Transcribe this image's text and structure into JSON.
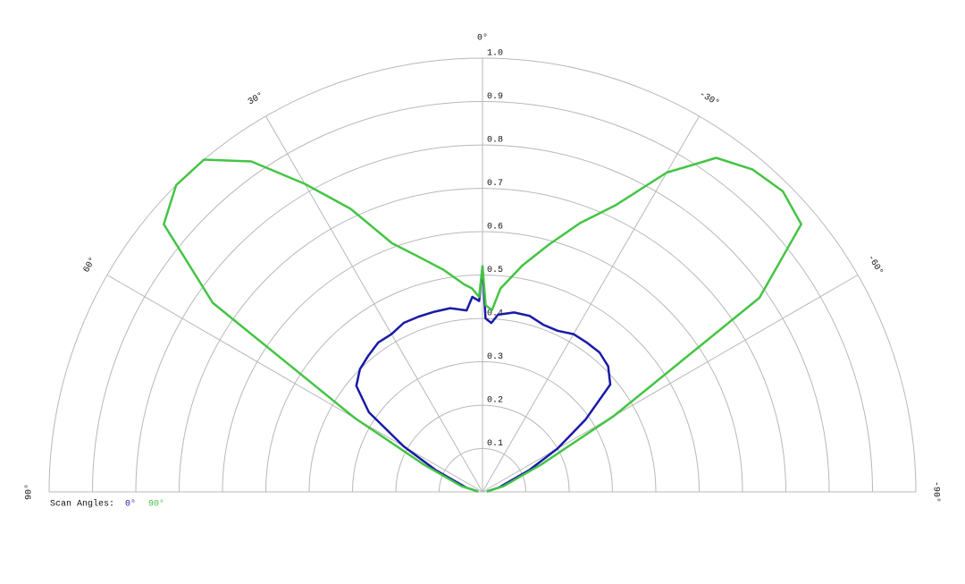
{
  "chart_data": {
    "type": "polar",
    "x": [
      -85,
      -75,
      -65,
      -60,
      -55,
      -50,
      -45,
      -40,
      -35,
      -30,
      -25,
      -20,
      -15,
      -10,
      -5,
      -3,
      -1,
      0,
      1,
      3,
      5,
      10,
      15,
      20,
      25,
      30,
      35,
      40,
      45,
      50,
      55,
      60,
      65,
      75,
      85
    ],
    "series": [
      {
        "name": "0°",
        "color": "#1a1aa8",
        "values": [
          0.01,
          0.04,
          0.12,
          0.2,
          0.29,
          0.385,
          0.41,
          0.42,
          0.42,
          0.42,
          0.41,
          0.41,
          0.42,
          0.42,
          0.41,
          0.39,
          0.4,
          0.52,
          0.44,
          0.45,
          0.42,
          0.43,
          0.43,
          0.43,
          0.43,
          0.42,
          0.42,
          0.41,
          0.4,
          0.38,
          0.32,
          0.21,
          0.12,
          0.04,
          0.01
        ]
      },
      {
        "name": "90°",
        "color": "#44c444",
        "values": [
          0.01,
          0.05,
          0.15,
          0.35,
          0.78,
          0.96,
          0.98,
          0.97,
          0.94,
          0.85,
          0.73,
          0.66,
          0.59,
          0.53,
          0.47,
          0.42,
          0.43,
          0.52,
          0.45,
          0.47,
          0.48,
          0.52,
          0.56,
          0.61,
          0.72,
          0.82,
          0.93,
          1.0,
          1.0,
          0.96,
          0.76,
          0.34,
          0.15,
          0.05,
          0.01
        ]
      }
    ],
    "legend_title": "Scan Angles:",
    "rlim": [
      0,
      1
    ],
    "rticks": [
      0.1,
      0.2,
      0.3,
      0.4,
      0.5,
      0.6,
      0.7,
      0.8,
      0.9,
      {
        "value": 1,
        "label": "1.0"
      }
    ],
    "thetaticks": [
      {
        "value": 0,
        "label": "0°"
      },
      {
        "value": 30,
        "label": "30°"
      },
      {
        "value": -30,
        "label": "-30°"
      },
      {
        "value": 60,
        "label": "60°"
      },
      {
        "value": -60,
        "label": "-60°"
      },
      {
        "value": 90,
        "label": "90°"
      },
      {
        "value": -90,
        "label": "-90°"
      }
    ],
    "grid": true
  }
}
